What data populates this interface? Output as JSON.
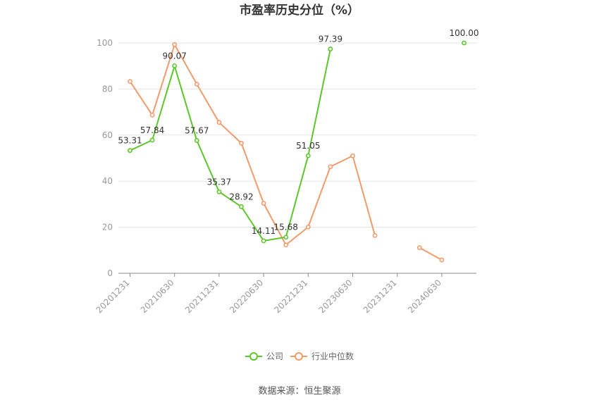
{
  "chart_data": {
    "type": "line",
    "title": "市盈率历史分位（%）",
    "xlabel": "",
    "ylabel": "",
    "ylim": [
      0,
      100
    ],
    "yticks": [
      0,
      20,
      40,
      60,
      80,
      100
    ],
    "categories": [
      "20201231",
      "20210331",
      "20210630",
      "20210930",
      "20211231",
      "20220331",
      "20220630",
      "20220930",
      "20221231",
      "20230331",
      "20230630",
      "20230930",
      "20231231",
      "20240331",
      "20240630",
      "20240930"
    ],
    "tick_labels": [
      "20201231",
      "20210630",
      "20211231",
      "20220630",
      "20221231",
      "20230630",
      "20231231",
      "20240630"
    ],
    "series": [
      {
        "name": "公司",
        "color": "#5cc72b",
        "values": [
          53.31,
          57.84,
          90.07,
          57.67,
          35.37,
          28.92,
          14.11,
          15.68,
          51.05,
          97.39,
          null,
          null,
          null,
          null,
          null,
          100.0
        ],
        "labels": [
          "53.31",
          "57.84",
          "90.07",
          "57.67",
          "35.37",
          "28.92",
          "14.11",
          "15.68",
          "51.05",
          "97.39",
          null,
          null,
          null,
          null,
          null,
          "100.00"
        ]
      },
      {
        "name": "行业中位数",
        "color": "#f39a6b",
        "values": [
          83.3,
          68.7,
          99.3,
          82.1,
          65.5,
          56.5,
          30.4,
          12.3,
          20.1,
          46.3,
          51.0,
          16.4,
          null,
          11.1,
          5.8,
          null
        ]
      }
    ],
    "legend_position": "bottom",
    "grid": true
  },
  "source": "数据来源：恒生聚源"
}
